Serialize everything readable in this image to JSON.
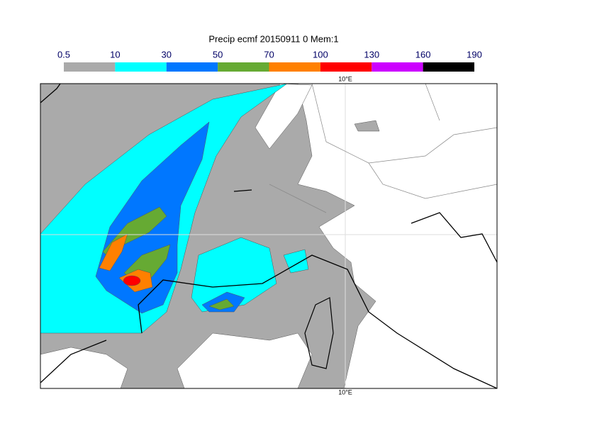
{
  "title": "Precip ecmf 20150911 0 Mem:1",
  "legend": {
    "levels": [
      0.5,
      10,
      30,
      50,
      70,
      100,
      130,
      160,
      190
    ],
    "colors": [
      "#aaaaaa",
      "#00ffff",
      "#0077ff",
      "#66aa33",
      "#ff8000",
      "#ff0000",
      "#cc00ff",
      "#000000"
    ]
  },
  "longitude_labels": {
    "top": "10°E",
    "bottom": "10°E"
  }
}
